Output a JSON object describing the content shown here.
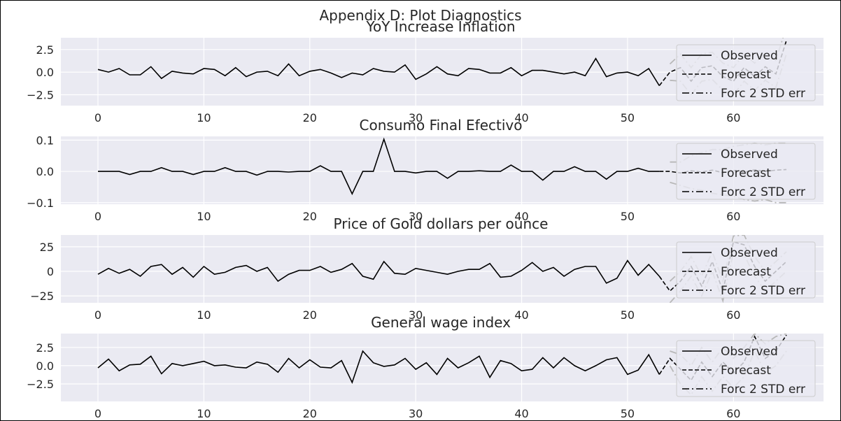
{
  "figure": {
    "title": "Appendix D: Plot Diagnostics"
  },
  "legend": {
    "observed": "Observed",
    "forecast": "Forecast",
    "stderr": "Forc 2 STD err"
  },
  "chart_data": [
    {
      "type": "line",
      "title": "YoY Increase Inflation",
      "xlim": [
        -3.5,
        68.5
      ],
      "ylim": [
        -3.7,
        3.8
      ],
      "xticks": [
        0,
        10,
        20,
        30,
        40,
        50,
        60
      ],
      "yticks": [
        2.5,
        0.0,
        -2.5
      ],
      "ytick_labels": [
        "2.5",
        "0.0",
        "−2.5"
      ],
      "legend_position": "right",
      "observed": [
        0.3,
        0.0,
        0.4,
        -0.3,
        -0.3,
        0.6,
        -0.7,
        0.1,
        -0.1,
        -0.2,
        0.4,
        0.3,
        -0.4,
        0.5,
        -0.5,
        0.0,
        0.1,
        -0.4,
        0.9,
        -0.4,
        0.1,
        0.3,
        -0.1,
        -0.6,
        -0.1,
        -0.3,
        0.4,
        0.1,
        0.0,
        0.8,
        -0.8,
        -0.2,
        0.6,
        -0.2,
        -0.4,
        0.4,
        0.3,
        -0.1,
        -0.1,
        0.5,
        -0.4,
        0.2,
        0.2,
        0.0,
        -0.2,
        0.0,
        -0.4,
        1.5,
        -0.5,
        -0.1,
        0.0,
        -0.4,
        0.4,
        -1.5
      ],
      "forecast_x": [
        53,
        54,
        55,
        56,
        57,
        58,
        59,
        60,
        61,
        62,
        63,
        64,
        65
      ],
      "forecast": [
        -1.5,
        0.0,
        0.5,
        -1.0,
        0.5,
        0.7,
        -0.5,
        -1.0,
        0.5,
        -0.5,
        0.6,
        -0.2,
        3.5
      ],
      "stderr_upper": [
        null,
        0.9,
        2.0,
        0.5,
        2.0,
        2.2,
        1.0,
        0.5,
        2.0,
        1.0,
        2.1,
        1.3,
        5.0
      ],
      "stderr_lower": [
        null,
        -0.9,
        -1.0,
        -2.5,
        -1.0,
        -0.8,
        -2.0,
        -2.5,
        -1.0,
        -2.0,
        -0.9,
        -1.7,
        2.0
      ]
    },
    {
      "type": "line",
      "title": "Consumo Final Efectivo",
      "xlim": [
        -3.5,
        68.5
      ],
      "ylim": [
        -0.105,
        0.112
      ],
      "xticks": [
        0,
        10,
        20,
        30,
        40,
        50,
        60
      ],
      "yticks": [
        0.1,
        0.0,
        -0.1
      ],
      "ytick_labels": [
        "0.1",
        "0.0",
        "−0.1"
      ],
      "legend_position": "right",
      "observed": [
        0.0,
        0.0,
        0.0,
        -0.01,
        0.0,
        0.0,
        0.012,
        0.0,
        0.0,
        -0.01,
        0.0,
        0.0,
        0.012,
        0.0,
        0.0,
        -0.012,
        0.0,
        0.0,
        -0.002,
        0.0,
        0.0,
        0.018,
        0.0,
        0.0,
        -0.072,
        0.0,
        0.0,
        0.103,
        0.0,
        0.0,
        -0.005,
        0.0,
        0.0,
        -0.022,
        0.0,
        0.0,
        0.002,
        0.0,
        0.0,
        0.02,
        0.0,
        0.0,
        -0.028,
        0.0,
        0.0,
        0.015,
        0.0,
        0.0,
        -0.025,
        0.0,
        0.0,
        0.01,
        0.0,
        0.0
      ],
      "forecast_x": [
        53,
        54,
        55,
        56,
        57,
        58,
        59,
        60,
        61,
        62,
        63,
        64,
        65
      ],
      "forecast": [
        0.0,
        0.0,
        -0.005,
        0.002,
        -0.002,
        0.004,
        -0.004,
        0.003,
        -0.003,
        0.005,
        0.0,
        0.004,
        0.006
      ],
      "stderr_upper": [
        null,
        0.03,
        0.03,
        0.05,
        0.06,
        0.07,
        0.07,
        0.08,
        0.085,
        0.09,
        0.085,
        0.09,
        0.09
      ],
      "stderr_lower": [
        null,
        -0.035,
        -0.045,
        -0.055,
        -0.06,
        -0.07,
        -0.075,
        -0.08,
        -0.09,
        -0.095,
        -0.09,
        -0.1,
        -0.1
      ]
    },
    {
      "type": "line",
      "title": "Price of Gold dollars per ounce",
      "xlim": [
        -3.5,
        68.5
      ],
      "ylim": [
        -32,
        37
      ],
      "xticks": [
        0,
        10,
        20,
        30,
        40,
        50,
        60
      ],
      "yticks": [
        25,
        0,
        -25
      ],
      "ytick_labels": [
        "25",
        "0",
        "−25"
      ],
      "legend_position": "right",
      "observed": [
        -3,
        3,
        -2,
        2,
        -5,
        5,
        7,
        -3,
        4,
        -6,
        5,
        -3,
        -1,
        4,
        6,
        0,
        4,
        -10,
        -3,
        1,
        1,
        5,
        -1,
        2,
        8,
        -5,
        -8,
        10,
        -2,
        -3,
        3,
        1,
        -1,
        -3,
        0,
        2,
        2,
        8,
        -6,
        -5,
        1,
        9,
        0,
        4,
        -5,
        2,
        5,
        5,
        -12,
        -7,
        11,
        -4,
        7,
        -5
      ],
      "forecast_x": [
        53,
        54,
        55,
        56,
        57,
        58,
        59,
        60,
        61,
        62,
        63,
        64,
        65
      ],
      "forecast": [
        -5,
        -20,
        -10,
        5,
        -15,
        10,
        -20,
        30,
        27,
        5,
        -10,
        0,
        10
      ],
      "stderr_upper": [
        null,
        -10,
        0,
        15,
        -5,
        20,
        -10,
        36,
        37,
        15,
        0,
        10,
        20
      ],
      "stderr_lower": [
        null,
        -32,
        -20,
        -5,
        -25,
        0,
        -30,
        20,
        17,
        -5,
        -20,
        -10,
        0
      ]
    },
    {
      "type": "line",
      "title": "General wage index",
      "xlim": [
        -3.5,
        68.5
      ],
      "ylim": [
        -4.9,
        4.4
      ],
      "xticks": [
        0,
        10,
        20,
        30,
        40,
        50,
        60
      ],
      "yticks": [
        2.5,
        0.0,
        -2.5
      ],
      "ytick_labels": [
        "2.5",
        "0.0",
        "−2.5"
      ],
      "legend_position": "right",
      "observed": [
        -0.3,
        0.9,
        -0.7,
        0.1,
        0.2,
        1.3,
        -1.1,
        0.3,
        0.0,
        0.3,
        0.6,
        0.0,
        0.1,
        -0.2,
        -0.3,
        0.5,
        0.2,
        -0.9,
        1.0,
        -0.3,
        0.8,
        -0.2,
        -0.3,
        0.7,
        -2.3,
        2.0,
        0.4,
        -0.1,
        0.1,
        1.0,
        -0.5,
        0.4,
        -1.2,
        1.0,
        -0.3,
        0.4,
        1.3,
        -1.6,
        0.7,
        0.3,
        -0.7,
        -0.5,
        1.1,
        -0.3,
        1.1,
        0.0,
        -0.7,
        0.0,
        0.8,
        1.1,
        -1.2,
        -0.6,
        1.5,
        -1.2
      ],
      "forecast_x": [
        53,
        54,
        55,
        56,
        57,
        58,
        59,
        60,
        61,
        62,
        63,
        64,
        65
      ],
      "forecast": [
        -1.2,
        1.0,
        -0.5,
        -2.0,
        0.5,
        -1.5,
        0.5,
        -1.0,
        0.5,
        4.0,
        1.0,
        2.0,
        4.2
      ],
      "stderr_upper": [
        null,
        2.0,
        1.5,
        0.0,
        2.5,
        0.5,
        2.5,
        1.0,
        2.5,
        4.4,
        3.0,
        4.0,
        4.4
      ],
      "stderr_lower": [
        null,
        0.0,
        -2.5,
        -4.0,
        -1.5,
        -3.5,
        -1.5,
        -3.0,
        -1.5,
        2.0,
        -1.0,
        0.0,
        2.0
      ]
    }
  ]
}
